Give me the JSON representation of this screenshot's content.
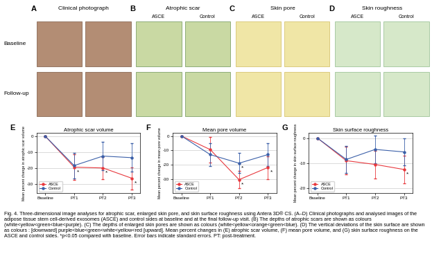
{
  "figure": {
    "rows": [
      "Baseline",
      "Follow-up"
    ],
    "panels": [
      {
        "label": "A",
        "title": "Clinical photograph",
        "columns": []
      },
      {
        "label": "B",
        "title": "Atrophic scar",
        "columns": [
          "ASCE",
          "Control"
        ]
      },
      {
        "label": "C",
        "title": "Skin pore",
        "columns": [
          "ASCE",
          "Control"
        ]
      },
      {
        "label": "D",
        "title": "Skin roughness",
        "columns": [
          "ASCE",
          "Control"
        ]
      }
    ]
  },
  "chart_data": [
    {
      "label": "E",
      "type": "line",
      "title": "Atrophic scar volume",
      "y_label": "Mean percent change in atrophic scar volume",
      "categories": [
        "Baseline",
        "PT1",
        "PT2",
        "PT3"
      ],
      "ylim": [
        -36,
        2
      ],
      "yticks": [
        0,
        -10,
        -20,
        -30
      ],
      "grid": true,
      "legend": "lower left",
      "marker": "o",
      "line_style": "solid",
      "annotation": "*",
      "series": [
        {
          "name": "ASCE",
          "color": "#e8383d",
          "values": [
            0,
            -19.5,
            -20,
            -26.5
          ],
          "errors": [
            0,
            8,
            7,
            7
          ],
          "significant": [
            false,
            true,
            true,
            true
          ]
        },
        {
          "name": "Control",
          "color": "#3a5fa8",
          "values": [
            0,
            -18.5,
            -12.5,
            -13.5
          ],
          "errors": [
            0,
            8,
            9,
            9
          ],
          "significant": [
            false,
            false,
            false,
            false
          ]
        }
      ]
    },
    {
      "label": "F",
      "type": "line",
      "title": "Mean pore volume",
      "y_label": "Mean percent change in mean pore volume",
      "categories": [
        "Baseline",
        "PT1",
        "PT2",
        "PT3"
      ],
      "ylim": [
        -40,
        2
      ],
      "yticks": [
        0,
        -10,
        -20,
        -30
      ],
      "grid": true,
      "legend": "lower left",
      "marker": "o",
      "line_style": "solid",
      "annotation": "*",
      "series": [
        {
          "name": "ASCE",
          "color": "#e8383d",
          "values": [
            0,
            -9.5,
            -30.5,
            -22
          ],
          "errors": [
            0,
            9,
            6,
            8
          ],
          "significant": [
            false,
            false,
            true,
            true
          ]
        },
        {
          "name": "Control",
          "color": "#3a5fa8",
          "values": [
            0,
            -13,
            -19,
            -13
          ],
          "errors": [
            0,
            8,
            7,
            8
          ],
          "significant": [
            false,
            false,
            true,
            false
          ]
        }
      ]
    },
    {
      "label": "G",
      "type": "line",
      "title": "Skin surface roughness",
      "y_label": "Mean percent change in skin surface roughness",
      "categories": [
        "Baseline",
        "PT1",
        "PT2",
        "PT3"
      ],
      "ylim": [
        -22,
        2
      ],
      "yticks": [
        0,
        -10,
        -20
      ],
      "grid": true,
      "legend": "lower left",
      "marker": "o",
      "line_style": "solid",
      "annotation": "*",
      "series": [
        {
          "name": "ASCE",
          "color": "#e8383d",
          "values": [
            0,
            -9,
            -10.5,
            -12.5
          ],
          "errors": [
            0,
            5.5,
            5.5,
            5.5
          ],
          "significant": [
            false,
            false,
            false,
            true
          ]
        },
        {
          "name": "Control",
          "color": "#3a5fa8",
          "values": [
            0,
            -8.5,
            -4.5,
            -5.5
          ],
          "errors": [
            0,
            5.5,
            5.5,
            5.5
          ],
          "significant": [
            false,
            false,
            false,
            false
          ]
        }
      ]
    }
  ],
  "caption": "Fig. 4. Three-dimensional image analyses for atrophic scar, enlarged skin pore, and skin surface roughness using Antera 3D® CS. (A–D) Clinical photographs and analysed images of the adipose tissue stem cell-derived exosomes (ASCE) and control sides at baseline and at the final follow-up visit. (B) The depths of atrophic scars are shown as colours (white<yellow<green<blue<purple). (C) The depths of enlarged skin pores are shown as colours (white<yellow<orange<green<blue). (D) The vertical deviations of the skin surface are shown as colours : [downward] purple<blue<green<white<yellow<red [upward]. Mean percent changes in (E) atrophic scar volume, (F) mean pore volume, and (G) skin surface roughness on the ASCE and control sides. *p<0.05 compared with baseline. Error bars indicate standard errors. PT: post-treatment."
}
